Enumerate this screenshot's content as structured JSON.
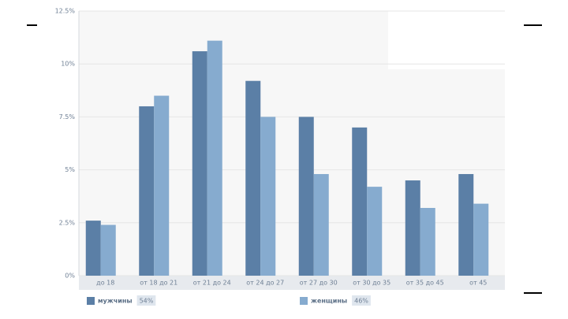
{
  "chart_data": {
    "type": "bar",
    "categories": [
      "до 18",
      "от 18 до 21",
      "от 21 до 24",
      "от 24 до 27",
      "от 27 до 30",
      "от 30 до 35",
      "от 35 до 45",
      "от 45"
    ],
    "series": [
      {
        "name": "мужчины",
        "color": "#5b7fa6",
        "share": {
          "value": 54,
          "label": "54%"
        },
        "values": [
          2.6,
          8.0,
          10.6,
          9.2,
          7.5,
          7.0,
          4.5,
          4.8
        ]
      },
      {
        "name": "женщины",
        "color": "#86abcf",
        "share": {
          "value": 46,
          "label": "46%"
        },
        "values": [
          2.4,
          8.5,
          11.1,
          7.5,
          4.8,
          4.2,
          3.2,
          3.4
        ]
      }
    ],
    "ylim": [
      0,
      12.5
    ],
    "yticks": [
      {
        "value": 0,
        "label": "0%"
      },
      {
        "value": 2.5,
        "label": "2.5%"
      },
      {
        "value": 5,
        "label": "5%"
      },
      {
        "value": 7.5,
        "label": "7.5%"
      },
      {
        "value": 10,
        "label": "10%"
      },
      {
        "value": 12.5,
        "label": "12.5%"
      }
    ],
    "grid": true
  }
}
